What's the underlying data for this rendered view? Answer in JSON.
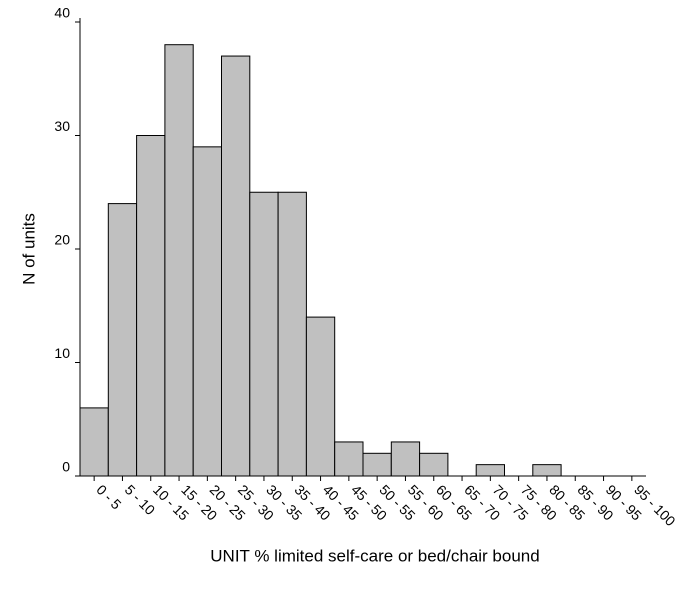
{
  "chart_data": {
    "type": "bar",
    "x_label": "UNIT % limited self-care or bed/chair bound",
    "y_label": "N of units",
    "categories": [
      "0 - 5",
      "5 - 10",
      "10 - 15",
      "15 - 20",
      "20 - 25",
      "25 - 30",
      "30 - 35",
      "35 - 40",
      "40 - 45",
      "45 - 50",
      "50 - 55",
      "55 - 60",
      "60 - 65",
      "65 - 70",
      "70 - 75",
      "75 - 80",
      "80 - 85",
      "85 - 90",
      "90 - 95",
      "95 - 100"
    ],
    "values": [
      6,
      24,
      30,
      38,
      29,
      37,
      25,
      25,
      14,
      3,
      2,
      3,
      2,
      0,
      1,
      0,
      1,
      0,
      0,
      0
    ],
    "color": "#c0c0c0",
    "ylim": [
      0,
      40
    ],
    "yticks": [
      0,
      10,
      20,
      30,
      40
    ],
    "grid": false
  }
}
